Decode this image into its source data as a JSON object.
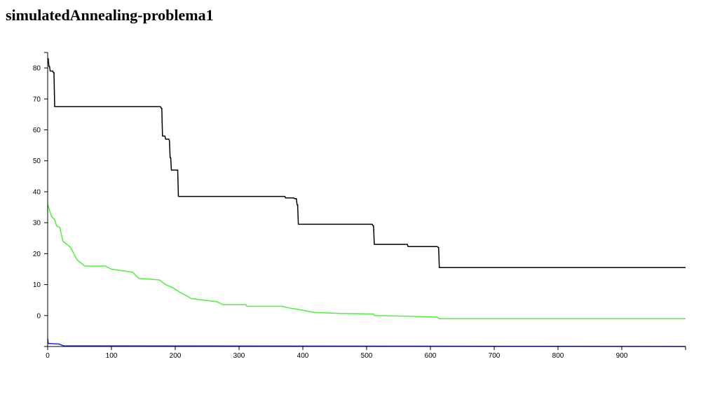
{
  "chart_data": {
    "type": "line",
    "title": "simulatedAnnealing-problema1",
    "xlabel": "",
    "ylabel": "",
    "xlim": [
      0,
      1000
    ],
    "ylim": [
      -10,
      85
    ],
    "x_ticks": [
      0,
      100,
      200,
      300,
      400,
      500,
      600,
      700,
      800,
      900
    ],
    "y_ticks": [
      0,
      10,
      20,
      30,
      40,
      50,
      60,
      70,
      80
    ],
    "grid": false,
    "legend": "none",
    "series": [
      {
        "color": "#000000",
        "step": true,
        "points": [
          [
            0,
            83
          ],
          [
            2,
            80.5
          ],
          [
            4,
            79
          ],
          [
            9,
            78.5
          ],
          [
            11,
            67.5
          ],
          [
            178,
            67
          ],
          [
            180,
            58
          ],
          [
            185,
            57
          ],
          [
            191,
            56.5
          ],
          [
            192,
            51
          ],
          [
            194,
            47
          ],
          [
            204,
            47
          ],
          [
            205,
            38.5
          ],
          [
            373,
            38
          ],
          [
            387,
            37.8
          ],
          [
            391,
            35.8
          ],
          [
            393,
            29.5
          ],
          [
            510,
            29
          ],
          [
            512,
            23
          ],
          [
            565,
            22.3
          ],
          [
            612,
            22
          ],
          [
            614,
            15.5
          ],
          [
            1000,
            15.5
          ]
        ]
      },
      {
        "color": "#4ef03c",
        "step": false,
        "points": [
          [
            0,
            36
          ],
          [
            3,
            34
          ],
          [
            6,
            32
          ],
          [
            11,
            31
          ],
          [
            14,
            29
          ],
          [
            19,
            28.5
          ],
          [
            24,
            24
          ],
          [
            30,
            23
          ],
          [
            36,
            22
          ],
          [
            41,
            20
          ],
          [
            46,
            18
          ],
          [
            52,
            17
          ],
          [
            58,
            16
          ],
          [
            90,
            16
          ],
          [
            100,
            15
          ],
          [
            117,
            14.5
          ],
          [
            133,
            14
          ],
          [
            143,
            12
          ],
          [
            175,
            11.5
          ],
          [
            185,
            10
          ],
          [
            196,
            9
          ],
          [
            200,
            8.5
          ],
          [
            207,
            7.5
          ],
          [
            217,
            6.5
          ],
          [
            225,
            5.5
          ],
          [
            245,
            5
          ],
          [
            265,
            4.5
          ],
          [
            275,
            3.5
          ],
          [
            311,
            3.5
          ],
          [
            312,
            3
          ],
          [
            367,
            3
          ],
          [
            377,
            2.5
          ],
          [
            392,
            2
          ],
          [
            418,
            1
          ],
          [
            460,
            0.7
          ],
          [
            511,
            0.5
          ],
          [
            512,
            0
          ],
          [
            565,
            -0.2
          ],
          [
            610,
            -0.5
          ],
          [
            614,
            -1
          ],
          [
            1000,
            -1
          ]
        ]
      },
      {
        "color": "#1f1ff2",
        "step": false,
        "points": [
          [
            0,
            -7.5
          ],
          [
            1,
            -9
          ],
          [
            18,
            -9.2
          ],
          [
            25,
            -9.8
          ],
          [
            1000,
            -10
          ]
        ]
      }
    ]
  }
}
